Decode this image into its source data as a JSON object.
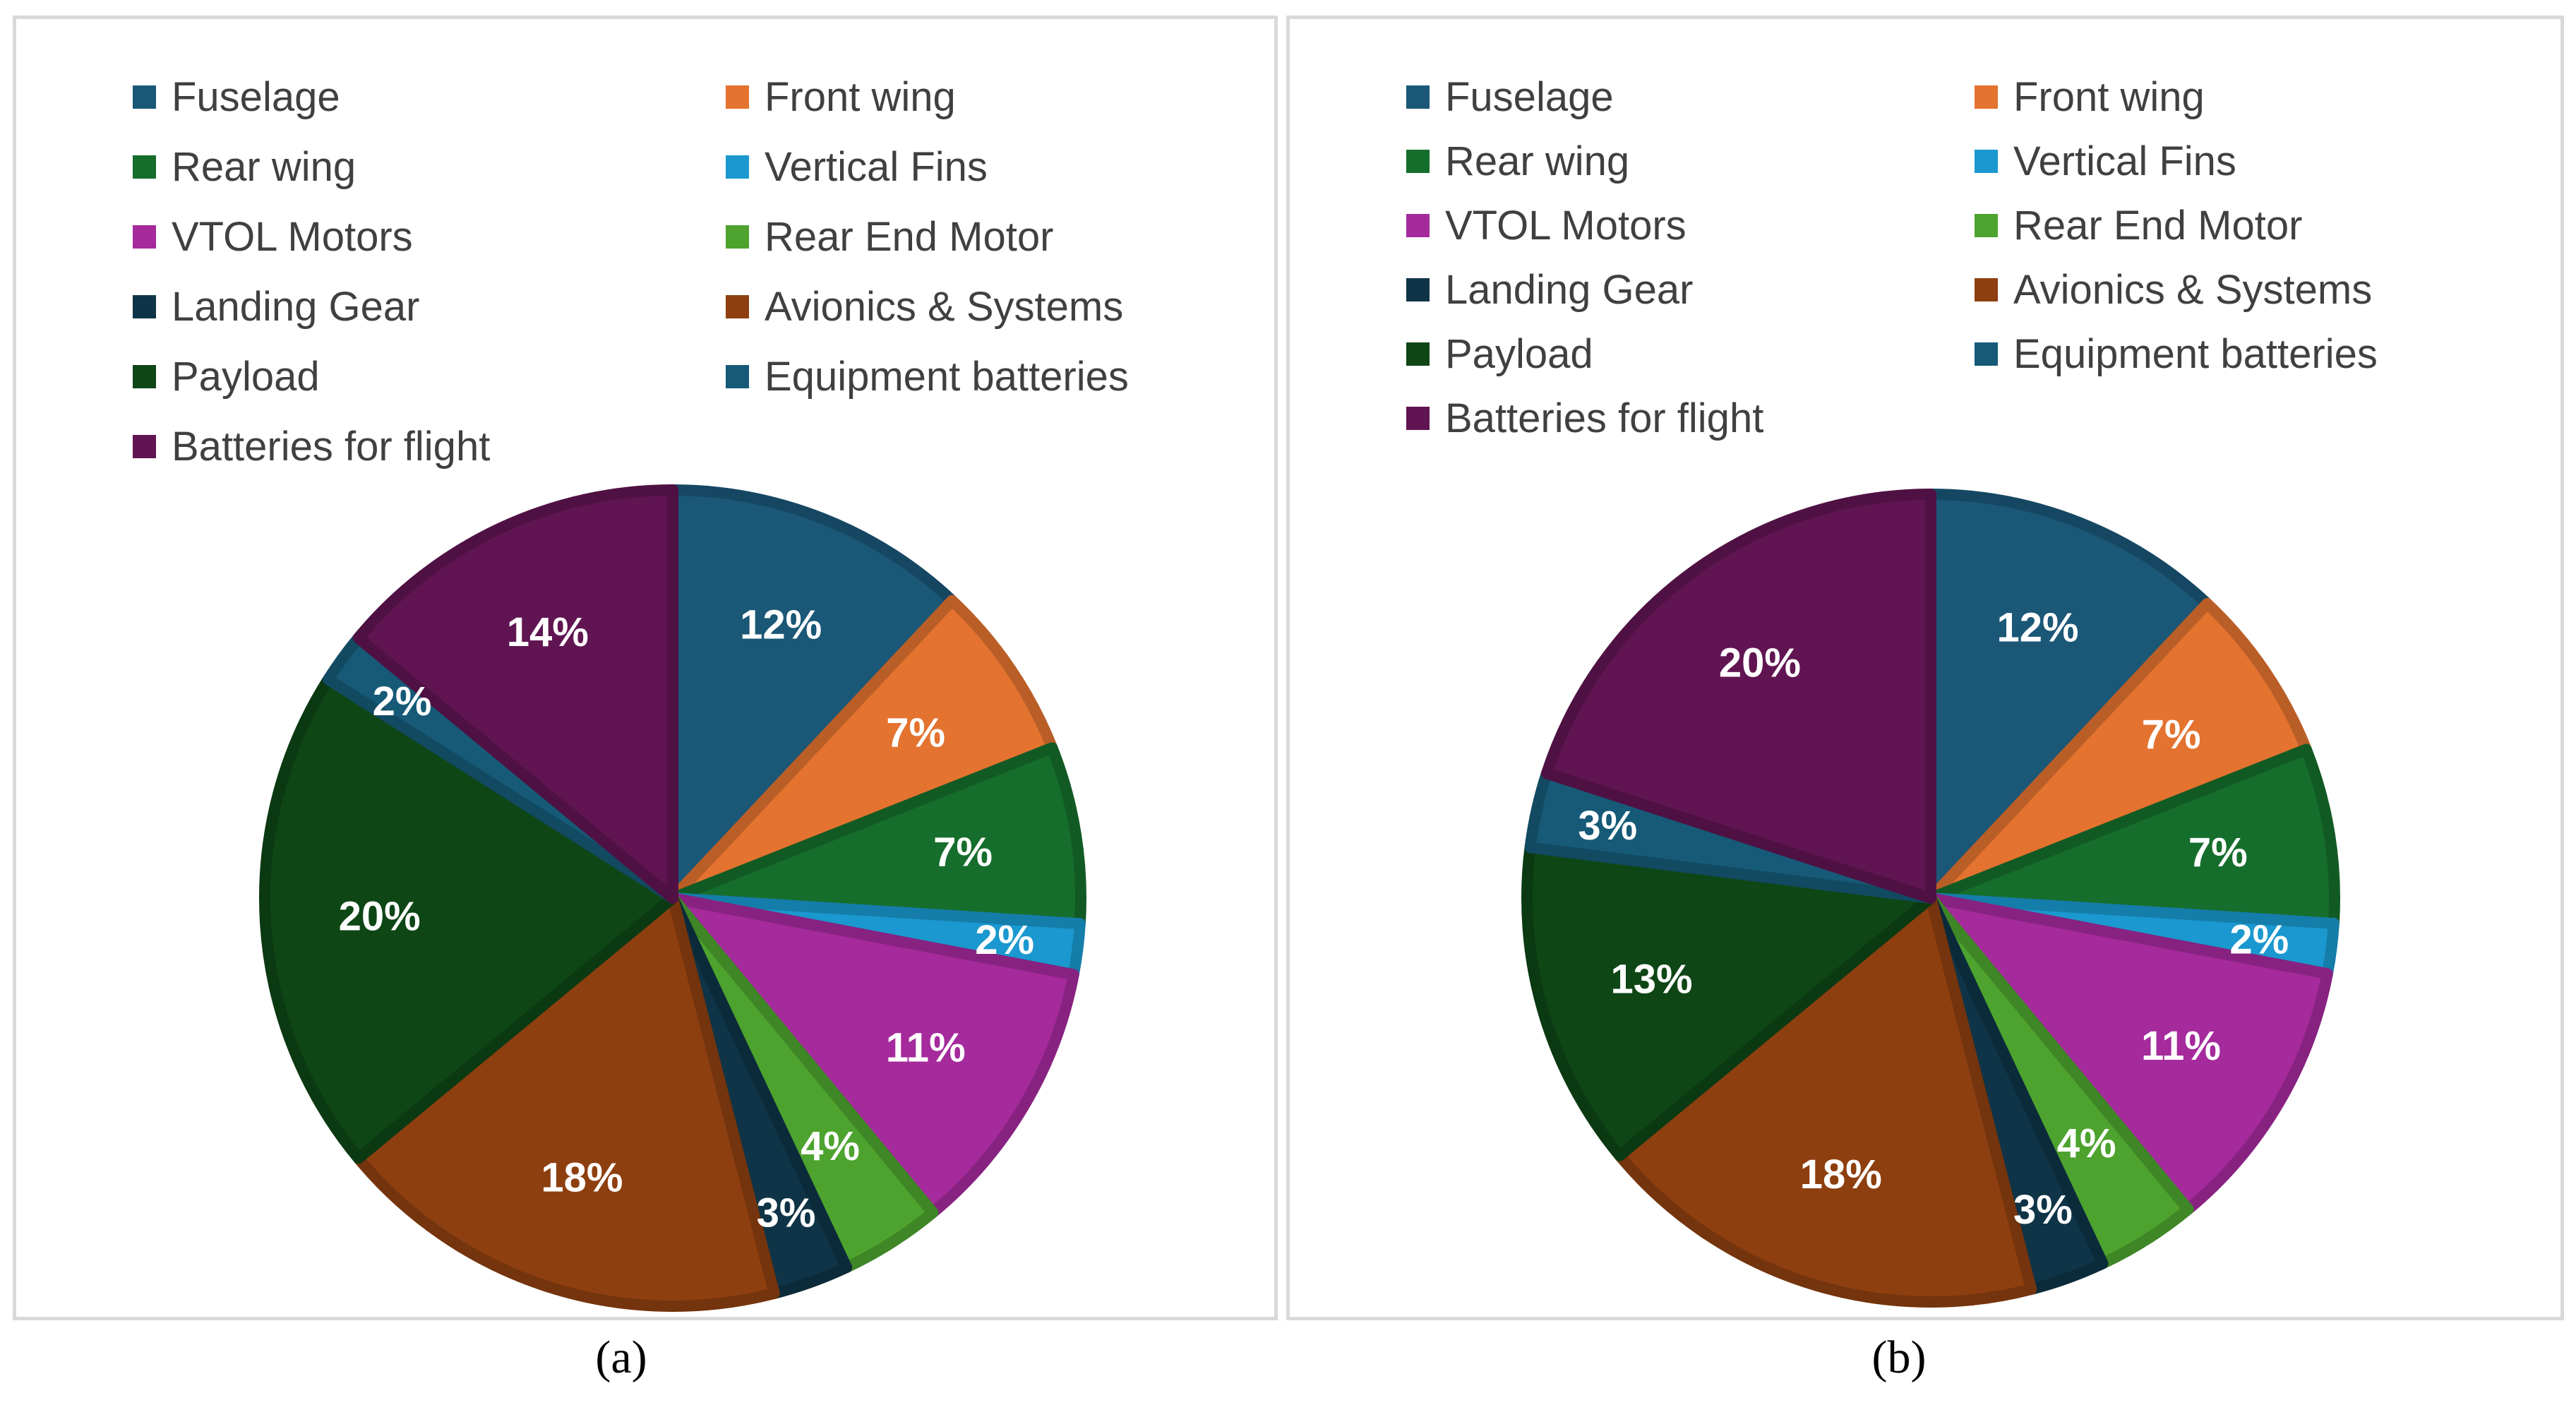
{
  "categories": [
    "Fuselage",
    "Front wing",
    "Rear wing",
    "Vertical Fins",
    "VTOL Motors",
    "Rear End Motor",
    "Landing Gear",
    "Avionics & Systems",
    "Payload",
    "Equipment batteries",
    "Batteries for flight"
  ],
  "colors": [
    "#1b5777",
    "#e3732f",
    "#166e2c",
    "#1a98cf",
    "#a52a9c",
    "#4da32e",
    "#0f3447",
    "#8e3f10",
    "#0e4616",
    "#165a78",
    "#601552"
  ],
  "chart_data": [
    {
      "type": "pie",
      "panel": "a",
      "caption": "(a)",
      "categories": [
        "Fuselage",
        "Front wing",
        "Rear wing",
        "Vertical Fins",
        "VTOL Motors",
        "Rear End Motor",
        "Landing Gear",
        "Avionics & Systems",
        "Payload",
        "Equipment batteries",
        "Batteries for flight"
      ],
      "values": [
        12,
        7,
        7,
        2,
        11,
        4,
        3,
        18,
        20,
        2,
        14
      ],
      "data_labels": [
        "12%",
        "7%",
        "7%",
        "2%",
        "11%",
        "4%",
        "3%",
        "18%",
        "20%",
        "2%",
        "14%"
      ],
      "legend_position": "top"
    },
    {
      "type": "pie",
      "panel": "b",
      "caption": "(b)",
      "categories": [
        "Fuselage",
        "Front wing",
        "Rear wing",
        "Vertical Fins",
        "VTOL Motors",
        "Rear End Motor",
        "Landing Gear",
        "Avionics & Systems",
        "Payload",
        "Equipment batteries",
        "Batteries for flight"
      ],
      "values": [
        12,
        7,
        7,
        2,
        11,
        4,
        3,
        18,
        13,
        3,
        20
      ],
      "data_labels": [
        "12%",
        "7%",
        "7%",
        "2%",
        "11%",
        "4%",
        "3%",
        "18%",
        "13%",
        "3%",
        "20%"
      ],
      "legend_position": "top"
    }
  ]
}
